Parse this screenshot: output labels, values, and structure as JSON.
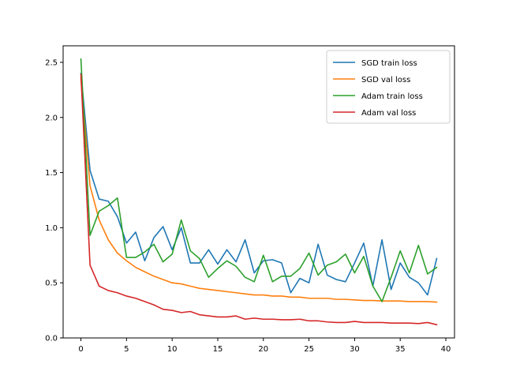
{
  "chart_data": {
    "type": "line",
    "title": "",
    "xlabel": "",
    "ylabel": "",
    "xlim": [
      -1.95,
      40.95
    ],
    "ylim": [
      0.0,
      2.65
    ],
    "xticks": [
      0,
      5,
      10,
      15,
      20,
      25,
      30,
      35,
      40
    ],
    "yticks": [
      0.0,
      0.5,
      1.0,
      1.5,
      2.0,
      2.5
    ],
    "xtick_labels": [
      "0",
      "5",
      "10",
      "15",
      "20",
      "25",
      "30",
      "35",
      "40"
    ],
    "ytick_labels": [
      "0.0",
      "0.5",
      "1.0",
      "1.5",
      "2.0",
      "2.5"
    ],
    "grid": false,
    "legend_position": "top-right",
    "x": [
      0,
      1,
      2,
      3,
      4,
      5,
      6,
      7,
      8,
      9,
      10,
      11,
      12,
      13,
      14,
      15,
      16,
      17,
      18,
      19,
      20,
      21,
      22,
      23,
      24,
      25,
      26,
      27,
      28,
      29,
      30,
      31,
      32,
      33,
      34,
      35,
      36,
      37,
      38,
      39
    ],
    "series": [
      {
        "name": "SGD train loss",
        "color": "#1f77b4",
        "values": [
          2.4,
          1.52,
          1.26,
          1.24,
          1.1,
          0.86,
          0.96,
          0.7,
          0.91,
          1.01,
          0.8,
          1.0,
          0.68,
          0.68,
          0.8,
          0.67,
          0.8,
          0.69,
          0.89,
          0.59,
          0.7,
          0.71,
          0.68,
          0.41,
          0.54,
          0.5,
          0.85,
          0.57,
          0.53,
          0.51,
          0.68,
          0.86,
          0.47,
          0.89,
          0.44,
          0.68,
          0.55,
          0.5,
          0.39,
          0.72
        ]
      },
      {
        "name": "SGD val loss",
        "color": "#ff7f0e",
        "values": [
          2.35,
          1.38,
          1.07,
          0.89,
          0.77,
          0.7,
          0.64,
          0.6,
          0.56,
          0.53,
          0.5,
          0.49,
          0.47,
          0.45,
          0.44,
          0.43,
          0.42,
          0.41,
          0.4,
          0.39,
          0.39,
          0.38,
          0.38,
          0.37,
          0.37,
          0.36,
          0.36,
          0.36,
          0.35,
          0.35,
          0.345,
          0.34,
          0.34,
          0.335,
          0.335,
          0.335,
          0.33,
          0.33,
          0.33,
          0.325
        ]
      },
      {
        "name": "Adam train loss",
        "color": "#2ca02c",
        "values": [
          2.53,
          0.93,
          1.15,
          1.2,
          1.27,
          0.73,
          0.73,
          0.78,
          0.85,
          0.69,
          0.76,
          1.07,
          0.79,
          0.72,
          0.55,
          0.63,
          0.7,
          0.65,
          0.55,
          0.51,
          0.75,
          0.51,
          0.56,
          0.56,
          0.63,
          0.77,
          0.57,
          0.66,
          0.69,
          0.76,
          0.59,
          0.74,
          0.47,
          0.33,
          0.55,
          0.79,
          0.59,
          0.84,
          0.58,
          0.64
        ]
      },
      {
        "name": "Adam val loss",
        "color": "#d62728",
        "values": [
          2.39,
          0.66,
          0.47,
          0.43,
          0.41,
          0.38,
          0.36,
          0.33,
          0.3,
          0.26,
          0.25,
          0.23,
          0.24,
          0.21,
          0.2,
          0.19,
          0.19,
          0.2,
          0.17,
          0.18,
          0.17,
          0.17,
          0.165,
          0.165,
          0.17,
          0.155,
          0.155,
          0.145,
          0.14,
          0.14,
          0.15,
          0.14,
          0.14,
          0.14,
          0.135,
          0.135,
          0.135,
          0.13,
          0.14,
          0.12
        ]
      }
    ]
  }
}
